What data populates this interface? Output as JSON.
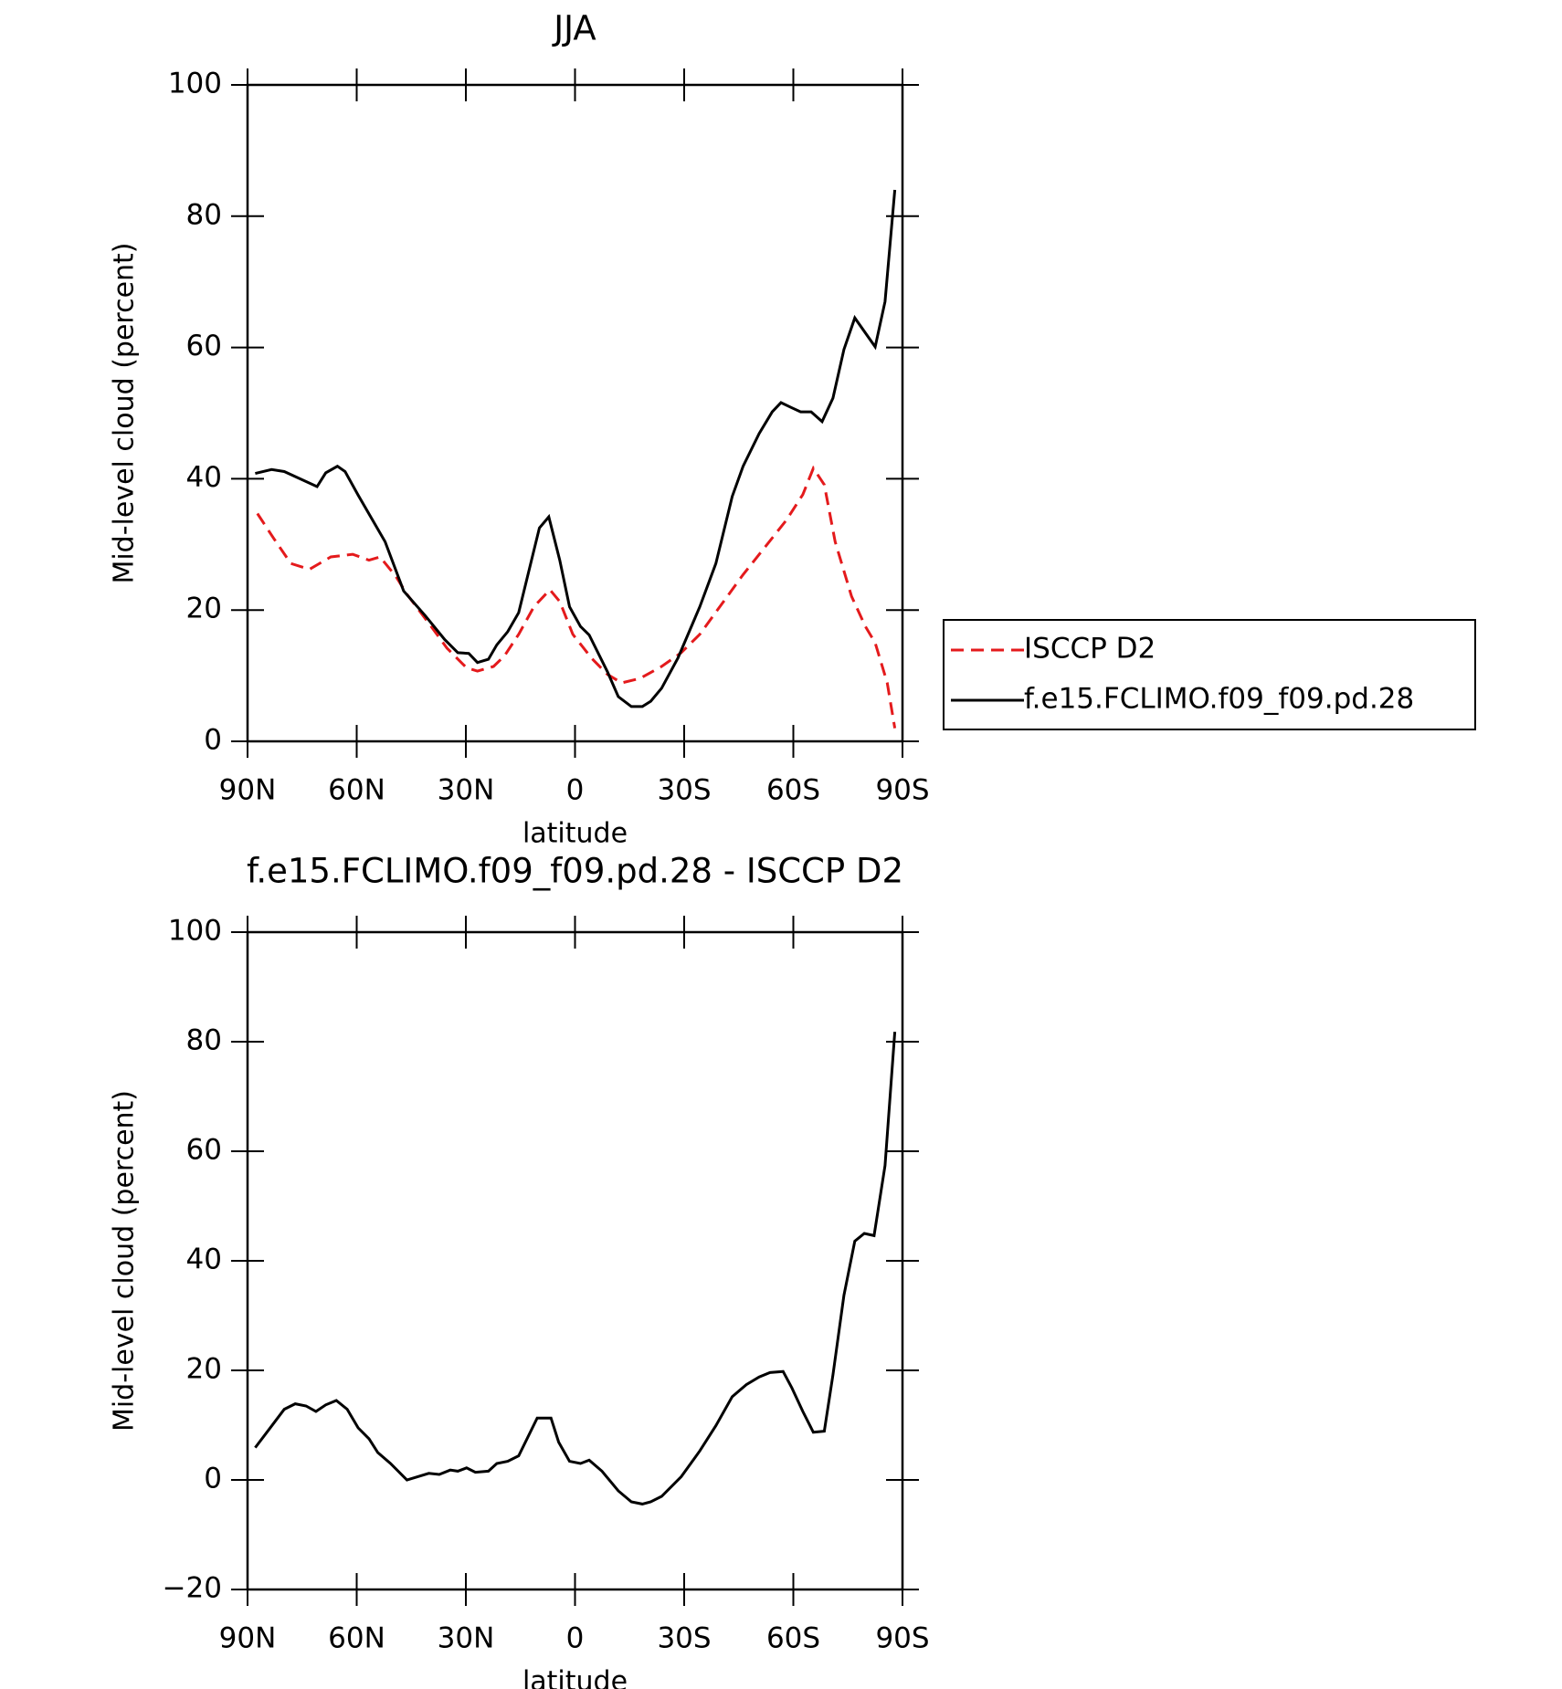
{
  "chart_data": [
    {
      "type": "line",
      "title": "JJA",
      "xlabel": "latitude",
      "ylabel": "Mid-level cloud (percent)",
      "xlim": [
        90,
        -90
      ],
      "ylim": [
        0,
        100
      ],
      "xticks": [
        {
          "value": 90,
          "label": "90N"
        },
        {
          "value": 60,
          "label": "60N"
        },
        {
          "value": 30,
          "label": "30N"
        },
        0,
        {
          "value": -30,
          "label": "30S"
        },
        {
          "value": -60,
          "label": "60S"
        },
        {
          "value": -90,
          "label": "90S"
        }
      ],
      "yticks": [
        0,
        20,
        40,
        60,
        80,
        100
      ],
      "legend": "right",
      "series": [
        {
          "name": "ISCCP D2",
          "color": "#e41a1c",
          "dash": true,
          "x": [
            87.3,
            82.8,
            78.1,
            73,
            67.1,
            61.1,
            56.6,
            53.6,
            49.2,
            46.2,
            40.2,
            35.2,
            29.8,
            26.8,
            22.4,
            19.4,
            15.5,
            11.3,
            6.9,
            4.2,
            0.6,
            -4.5,
            -8.9,
            -12.8,
            -17.9,
            -23.8,
            -29.2,
            -34.3,
            -40.2,
            -46.2,
            -52.1,
            -58.1,
            -62.6,
            -65.5,
            -68.5,
            -71.5,
            -76,
            -79.8,
            -82.5,
            -85.8,
            -87.9
          ],
          "values": [
            34.7,
            30.9,
            27.1,
            26.2,
            28.1,
            28.5,
            27.6,
            28.1,
            25.1,
            22.4,
            18,
            14.2,
            11.2,
            10.7,
            11.4,
            13,
            16.3,
            20.5,
            23.1,
            21.3,
            16.3,
            12.7,
            10.2,
            8.9,
            9.6,
            11.4,
            13.5,
            16.3,
            20.8,
            25.4,
            29.5,
            33.7,
            37.6,
            41.6,
            39.1,
            30.4,
            22.1,
            17.5,
            15,
            8.9,
            2
          ]
        },
        {
          "name": "f.e15.FCLIMO.f09_f09.pd.28",
          "color": "#000000",
          "dash": false,
          "x": [
            87.9,
            83.4,
            79.9,
            70.9,
            68.5,
            65.3,
            63.2,
            59.6,
            52.2,
            47.1,
            41.1,
            35.8,
            32.2,
            29.2,
            26.8,
            23.8,
            21.5,
            18.5,
            15.5,
            9.8,
            7.2,
            4.2,
            1.5,
            -1.5,
            -3.9,
            -8.9,
            -11.9,
            -15.5,
            -18.5,
            -20.8,
            -23.8,
            -28.3,
            -34.3,
            -38.7,
            -43.2,
            -46.2,
            -50.6,
            -54.2,
            -56.6,
            -59.6,
            -62,
            -64.9,
            -67.9,
            -70.9,
            -73.9,
            -76.9,
            -82.5,
            -85.2,
            -87.9
          ],
          "values": [
            40.8,
            41.4,
            41.1,
            38.8,
            40.9,
            41.9,
            41.1,
            37.5,
            30.4,
            22.9,
            19.1,
            15.5,
            13.5,
            13.4,
            12,
            12.5,
            14.7,
            16.7,
            19.6,
            32.5,
            34.2,
            27.6,
            20.5,
            17.5,
            16.2,
            10.6,
            6.8,
            5.3,
            5.3,
            6.1,
            8.1,
            12.7,
            20.5,
            27.1,
            37.3,
            41.9,
            46.9,
            50.2,
            51.6,
            50.8,
            50.2,
            50.2,
            48.7,
            52.3,
            59.7,
            64.5,
            60.1,
            67,
            84
          ]
        }
      ]
    },
    {
      "type": "line",
      "title": "f.e15.FCLIMO.f09_f09.pd.28 - ISCCP D2",
      "xlabel": "latitude",
      "ylabel": "Mid-level cloud (percent)",
      "xlim": [
        90,
        -90
      ],
      "ylim": [
        -20,
        100
      ],
      "xticks": [
        {
          "value": 90,
          "label": "90N"
        },
        {
          "value": 60,
          "label": "60N"
        },
        {
          "value": 30,
          "label": "30N"
        },
        0,
        {
          "value": -30,
          "label": "30S"
        },
        {
          "value": -60,
          "label": "60S"
        },
        {
          "value": -90,
          "label": "90S"
        }
      ],
      "yticks": [
        {
          "value": -20,
          "label": "−20"
        },
        0,
        20,
        40,
        60,
        80,
        100
      ],
      "series": [
        {
          "color": "#000000",
          "dash": false,
          "x": [
            87.9,
            84,
            79.9,
            76.9,
            73.9,
            71.2,
            68.5,
            65.6,
            62.6,
            59.6,
            56.6,
            54.2,
            50.7,
            46.2,
            43.2,
            40.2,
            37.3,
            34.3,
            32.2,
            29.8,
            27.4,
            23.8,
            21.5,
            18.5,
            15.5,
            10.4,
            6.6,
            4.5,
            1.5,
            -1.5,
            -3.9,
            -7.4,
            -11.9,
            -15.5,
            -18.5,
            -20.8,
            -23.8,
            -29.2,
            -34.3,
            -38.7,
            -43.2,
            -47.1,
            -50.6,
            -53.6,
            -57.2,
            -59.6,
            -62.6,
            -65.5,
            -68.5,
            -70.9,
            -73.9,
            -76.9,
            -79.5,
            -82.2,
            -85.2,
            -87.9
          ],
          "values": [
            5.9,
            9.3,
            12.9,
            13.9,
            13.5,
            12.5,
            13.7,
            14.5,
            12.9,
            9.5,
            7.5,
            5,
            3,
            0,
            0.6,
            1.2,
            1,
            1.8,
            1.6,
            2.2,
            1.4,
            1.6,
            3,
            3.4,
            4.4,
            11.3,
            11.3,
            6.9,
            3.4,
            3,
            3.6,
            1.6,
            -2,
            -4,
            -4.4,
            -4,
            -3,
            0.6,
            5.3,
            9.9,
            15.2,
            17.4,
            18.8,
            19.6,
            19.8,
            16.8,
            12.5,
            8.7,
            8.9,
            19.2,
            33.7,
            43.6,
            45,
            44.6,
            57.4,
            81.8
          ]
        }
      ]
    }
  ]
}
